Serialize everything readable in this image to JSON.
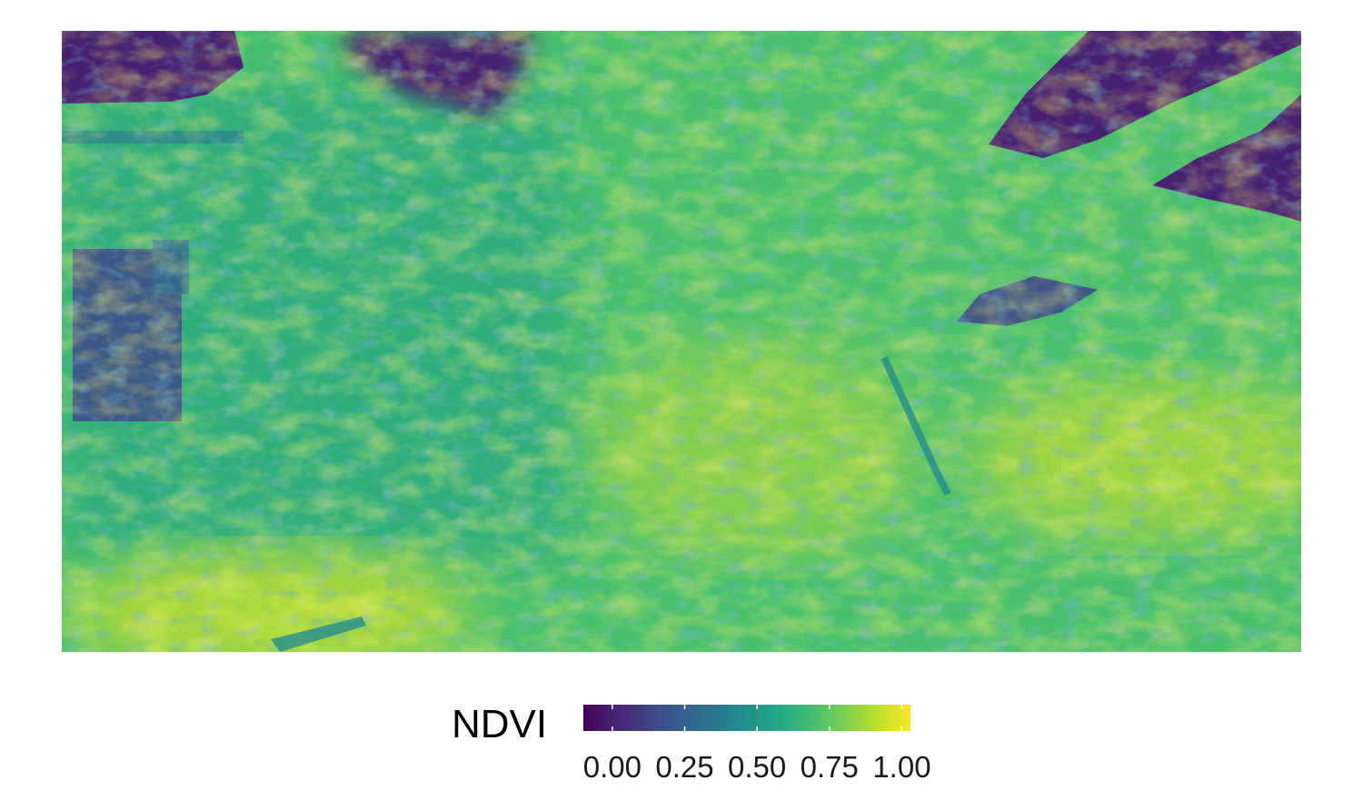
{
  "chart_data": {
    "type": "heatmap",
    "title": "",
    "xlabel": "",
    "ylabel": "",
    "colormap": "viridis",
    "legend": {
      "title": "NDVI",
      "position": "bottom",
      "range": [
        -0.1,
        1.03
      ],
      "ticks": [
        0.0,
        0.25,
        0.5,
        0.75,
        1.0
      ],
      "tick_labels": [
        "0.00",
        "0.25",
        "0.50",
        "0.75",
        "1.00"
      ]
    },
    "scene_description_values": {
      "sky_and_background_ndvi": 0.0,
      "buildings_ndvi": 0.15,
      "canopy_mean_ndvi": 0.7,
      "brightest_foliage_ndvi": 0.95
    },
    "axes_visible": false,
    "grid": false
  }
}
